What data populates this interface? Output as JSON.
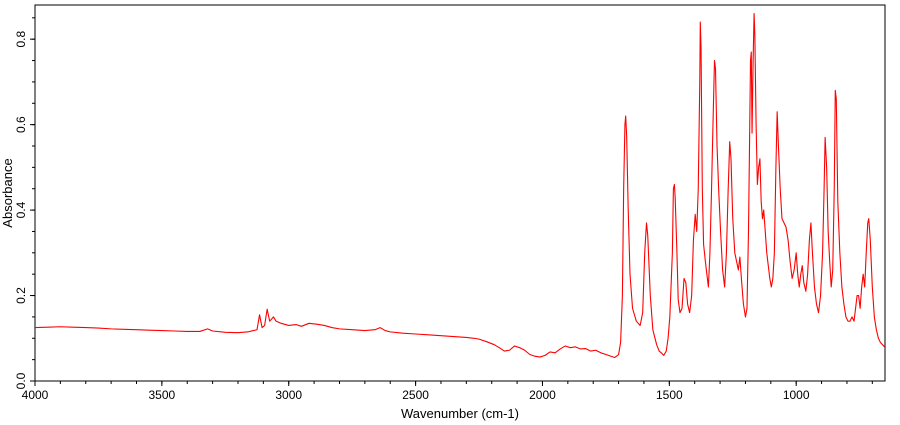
{
  "chart_data": {
    "type": "line",
    "title": "",
    "xlabel": "Wavenumber (cm-1)",
    "ylabel": "Absorbance",
    "xlim": [
      4000,
      650
    ],
    "ylim": [
      0.0,
      0.88
    ],
    "x_reversed": true,
    "grid": false,
    "legend": "none",
    "line_color": "#ff0000",
    "x_ticks": [
      {
        "value": 4000,
        "label": "4000"
      },
      {
        "value": 3500,
        "label": "3500"
      },
      {
        "value": 3000,
        "label": "3000"
      },
      {
        "value": 2500,
        "label": "2500"
      },
      {
        "value": 2000,
        "label": "2000"
      },
      {
        "value": 1500,
        "label": "1500"
      },
      {
        "value": 1000,
        "label": "1000"
      }
    ],
    "y_ticks": [
      {
        "value": 0.0,
        "label": "0.0"
      },
      {
        "value": 0.2,
        "label": "0.2"
      },
      {
        "value": 0.4,
        "label": "0.4"
      },
      {
        "value": 0.6,
        "label": "0.6"
      },
      {
        "value": 0.8,
        "label": "0.8"
      }
    ],
    "series": [
      {
        "points": [
          [
            4000,
            0.125
          ],
          [
            3950,
            0.126
          ],
          [
            3900,
            0.127
          ],
          [
            3850,
            0.126
          ],
          [
            3800,
            0.125
          ],
          [
            3750,
            0.124
          ],
          [
            3700,
            0.122
          ],
          [
            3650,
            0.121
          ],
          [
            3600,
            0.12
          ],
          [
            3550,
            0.119
          ],
          [
            3500,
            0.118
          ],
          [
            3450,
            0.117
          ],
          [
            3400,
            0.116
          ],
          [
            3350,
            0.116
          ],
          [
            3320,
            0.122
          ],
          [
            3300,
            0.117
          ],
          [
            3250,
            0.114
          ],
          [
            3200,
            0.113
          ],
          [
            3160,
            0.115
          ],
          [
            3140,
            0.118
          ],
          [
            3125,
            0.12
          ],
          [
            3115,
            0.155
          ],
          [
            3105,
            0.125
          ],
          [
            3095,
            0.13
          ],
          [
            3085,
            0.168
          ],
          [
            3075,
            0.14
          ],
          [
            3060,
            0.15
          ],
          [
            3050,
            0.14
          ],
          [
            3030,
            0.135
          ],
          [
            3000,
            0.13
          ],
          [
            2970,
            0.132
          ],
          [
            2950,
            0.128
          ],
          [
            2920,
            0.135
          ],
          [
            2890,
            0.133
          ],
          [
            2860,
            0.13
          ],
          [
            2830,
            0.125
          ],
          [
            2800,
            0.122
          ],
          [
            2750,
            0.12
          ],
          [
            2700,
            0.118
          ],
          [
            2660,
            0.12
          ],
          [
            2640,
            0.125
          ],
          [
            2620,
            0.118
          ],
          [
            2600,
            0.115
          ],
          [
            2550,
            0.112
          ],
          [
            2500,
            0.11
          ],
          [
            2450,
            0.108
          ],
          [
            2400,
            0.106
          ],
          [
            2350,
            0.104
          ],
          [
            2300,
            0.102
          ],
          [
            2270,
            0.1
          ],
          [
            2250,
            0.098
          ],
          [
            2220,
            0.092
          ],
          [
            2190,
            0.085
          ],
          [
            2170,
            0.078
          ],
          [
            2150,
            0.07
          ],
          [
            2130,
            0.072
          ],
          [
            2110,
            0.082
          ],
          [
            2090,
            0.078
          ],
          [
            2070,
            0.072
          ],
          [
            2050,
            0.062
          ],
          [
            2030,
            0.058
          ],
          [
            2010,
            0.056
          ],
          [
            1990,
            0.06
          ],
          [
            1970,
            0.068
          ],
          [
            1950,
            0.066
          ],
          [
            1930,
            0.075
          ],
          [
            1910,
            0.082
          ],
          [
            1890,
            0.078
          ],
          [
            1870,
            0.08
          ],
          [
            1850,
            0.075
          ],
          [
            1830,
            0.076
          ],
          [
            1810,
            0.07
          ],
          [
            1790,
            0.072
          ],
          [
            1770,
            0.066
          ],
          [
            1750,
            0.062
          ],
          [
            1730,
            0.058
          ],
          [
            1715,
            0.055
          ],
          [
            1700,
            0.062
          ],
          [
            1692,
            0.09
          ],
          [
            1685,
            0.2
          ],
          [
            1680,
            0.45
          ],
          [
            1675,
            0.6
          ],
          [
            1672,
            0.62
          ],
          [
            1668,
            0.57
          ],
          [
            1662,
            0.4
          ],
          [
            1655,
            0.25
          ],
          [
            1645,
            0.17
          ],
          [
            1630,
            0.14
          ],
          [
            1615,
            0.13
          ],
          [
            1605,
            0.16
          ],
          [
            1597,
            0.3
          ],
          [
            1590,
            0.37
          ],
          [
            1585,
            0.34
          ],
          [
            1575,
            0.2
          ],
          [
            1565,
            0.12
          ],
          [
            1550,
            0.085
          ],
          [
            1540,
            0.07
          ],
          [
            1530,
            0.065
          ],
          [
            1522,
            0.06
          ],
          [
            1512,
            0.07
          ],
          [
            1505,
            0.1
          ],
          [
            1498,
            0.15
          ],
          [
            1492,
            0.24
          ],
          [
            1488,
            0.3
          ],
          [
            1484,
            0.45
          ],
          [
            1480,
            0.46
          ],
          [
            1477,
            0.43
          ],
          [
            1470,
            0.3
          ],
          [
            1465,
            0.19
          ],
          [
            1458,
            0.16
          ],
          [
            1450,
            0.17
          ],
          [
            1442,
            0.24
          ],
          [
            1435,
            0.23
          ],
          [
            1428,
            0.18
          ],
          [
            1420,
            0.16
          ],
          [
            1412,
            0.2
          ],
          [
            1405,
            0.33
          ],
          [
            1398,
            0.39
          ],
          [
            1392,
            0.35
          ],
          [
            1386,
            0.45
          ],
          [
            1380,
            0.7
          ],
          [
            1378,
            0.84
          ],
          [
            1375,
            0.78
          ],
          [
            1370,
            0.45
          ],
          [
            1365,
            0.32
          ],
          [
            1358,
            0.28
          ],
          [
            1352,
            0.25
          ],
          [
            1346,
            0.22
          ],
          [
            1340,
            0.3
          ],
          [
            1334,
            0.44
          ],
          [
            1328,
            0.6
          ],
          [
            1322,
            0.75
          ],
          [
            1318,
            0.73
          ],
          [
            1312,
            0.55
          ],
          [
            1305,
            0.44
          ],
          [
            1298,
            0.35
          ],
          [
            1290,
            0.26
          ],
          [
            1282,
            0.22
          ],
          [
            1275,
            0.3
          ],
          [
            1268,
            0.45
          ],
          [
            1262,
            0.56
          ],
          [
            1257,
            0.52
          ],
          [
            1250,
            0.38
          ],
          [
            1242,
            0.3
          ],
          [
            1235,
            0.28
          ],
          [
            1228,
            0.26
          ],
          [
            1222,
            0.29
          ],
          [
            1216,
            0.24
          ],
          [
            1208,
            0.18
          ],
          [
            1200,
            0.15
          ],
          [
            1194,
            0.17
          ],
          [
            1188,
            0.35
          ],
          [
            1183,
            0.6
          ],
          [
            1180,
            0.75
          ],
          [
            1177,
            0.77
          ],
          [
            1174,
            0.58
          ],
          [
            1170,
            0.74
          ],
          [
            1166,
            0.86
          ],
          [
            1163,
            0.81
          ],
          [
            1158,
            0.6
          ],
          [
            1153,
            0.46
          ],
          [
            1148,
            0.5
          ],
          [
            1143,
            0.52
          ],
          [
            1138,
            0.42
          ],
          [
            1133,
            0.38
          ],
          [
            1128,
            0.4
          ],
          [
            1122,
            0.35
          ],
          [
            1116,
            0.3
          ],
          [
            1110,
            0.27
          ],
          [
            1104,
            0.24
          ],
          [
            1098,
            0.22
          ],
          [
            1092,
            0.24
          ],
          [
            1086,
            0.3
          ],
          [
            1080,
            0.5
          ],
          [
            1075,
            0.63
          ],
          [
            1070,
            0.55
          ],
          [
            1063,
            0.45
          ],
          [
            1056,
            0.38
          ],
          [
            1048,
            0.37
          ],
          [
            1040,
            0.36
          ],
          [
            1032,
            0.33
          ],
          [
            1024,
            0.28
          ],
          [
            1016,
            0.24
          ],
          [
            1008,
            0.26
          ],
          [
            1000,
            0.3
          ],
          [
            994,
            0.25
          ],
          [
            988,
            0.22
          ],
          [
            982,
            0.25
          ],
          [
            976,
            0.27
          ],
          [
            970,
            0.23
          ],
          [
            962,
            0.21
          ],
          [
            955,
            0.25
          ],
          [
            948,
            0.33
          ],
          [
            942,
            0.37
          ],
          [
            936,
            0.3
          ],
          [
            928,
            0.22
          ],
          [
            920,
            0.18
          ],
          [
            912,
            0.16
          ],
          [
            904,
            0.2
          ],
          [
            896,
            0.3
          ],
          [
            890,
            0.45
          ],
          [
            886,
            0.57
          ],
          [
            880,
            0.5
          ],
          [
            874,
            0.35
          ],
          [
            868,
            0.28
          ],
          [
            862,
            0.22
          ],
          [
            856,
            0.26
          ],
          [
            850,
            0.45
          ],
          [
            846,
            0.68
          ],
          [
            842,
            0.66
          ],
          [
            836,
            0.42
          ],
          [
            828,
            0.3
          ],
          [
            820,
            0.22
          ],
          [
            812,
            0.18
          ],
          [
            804,
            0.15
          ],
          [
            796,
            0.14
          ],
          [
            788,
            0.14
          ],
          [
            780,
            0.15
          ],
          [
            772,
            0.14
          ],
          [
            766,
            0.17
          ],
          [
            760,
            0.2
          ],
          [
            754,
            0.2
          ],
          [
            748,
            0.17
          ],
          [
            742,
            0.22
          ],
          [
            736,
            0.25
          ],
          [
            730,
            0.22
          ],
          [
            724,
            0.3
          ],
          [
            718,
            0.37
          ],
          [
            714,
            0.38
          ],
          [
            708,
            0.33
          ],
          [
            700,
            0.22
          ],
          [
            692,
            0.15
          ],
          [
            684,
            0.12
          ],
          [
            676,
            0.1
          ],
          [
            668,
            0.09
          ],
          [
            660,
            0.085
          ],
          [
            652,
            0.08
          ]
        ]
      }
    ]
  }
}
